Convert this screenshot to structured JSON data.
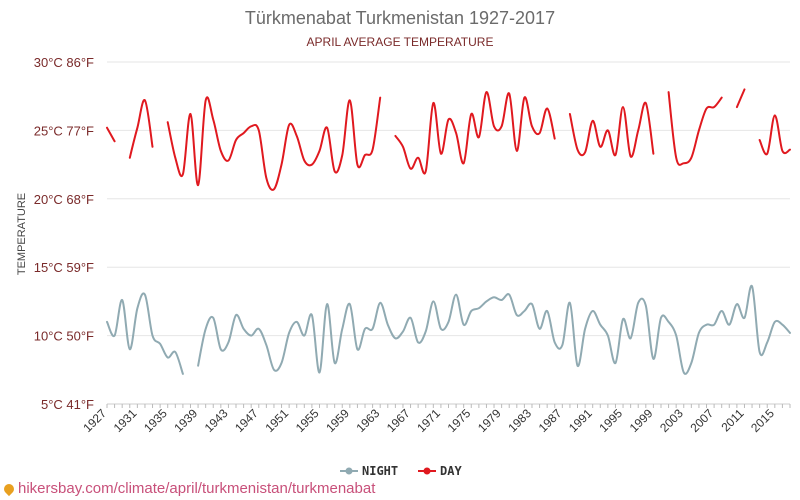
{
  "chart_data": {
    "type": "line",
    "title": "Türkmenabat Turkmenistan 1927-2017",
    "subtitle": "APRIL AVERAGE TEMPERATURE",
    "ylabel": "TEMPERATURE",
    "ylim": [
      5,
      30
    ],
    "xlim": [
      1927,
      2017
    ],
    "y_ticks": [
      {
        "value": 30,
        "label": "30°C 86°F"
      },
      {
        "value": 25,
        "label": "25°C 77°F"
      },
      {
        "value": 20,
        "label": "20°C 68°F"
      },
      {
        "value": 15,
        "label": "15°C 59°F"
      },
      {
        "value": 10,
        "label": "10°C 50°F"
      },
      {
        "value": 5,
        "label": "5°C 41°F"
      }
    ],
    "x_ticks": [
      1927,
      1931,
      1935,
      1939,
      1943,
      1947,
      1951,
      1955,
      1959,
      1963,
      1967,
      1971,
      1975,
      1979,
      1983,
      1987,
      1991,
      1995,
      1999,
      2003,
      2007,
      2011,
      2015
    ],
    "grid": true,
    "legend_position": "bottom-center",
    "series": [
      {
        "name": "NIGHT",
        "color": "#90aab2",
        "values": [
          [
            1927,
            11.0
          ],
          [
            1928,
            10.0
          ],
          [
            1929,
            12.6
          ],
          [
            1930,
            9.0
          ],
          [
            1931,
            12.0
          ],
          [
            1932,
            13.0
          ],
          [
            1933,
            10.0
          ],
          [
            1934,
            9.4
          ],
          [
            1935,
            8.4
          ],
          [
            1936,
            8.8
          ],
          [
            1937,
            7.2
          ],
          [
            1939,
            7.8
          ],
          [
            1940,
            10.5
          ],
          [
            1941,
            11.3
          ],
          [
            1942,
            9.0
          ],
          [
            1943,
            9.5
          ],
          [
            1944,
            11.5
          ],
          [
            1945,
            10.5
          ],
          [
            1946,
            10.0
          ],
          [
            1947,
            10.5
          ],
          [
            1948,
            9.3
          ],
          [
            1949,
            7.5
          ],
          [
            1950,
            8.0
          ],
          [
            1951,
            10.2
          ],
          [
            1952,
            11.0
          ],
          [
            1953,
            10.0
          ],
          [
            1954,
            11.5
          ],
          [
            1955,
            7.3
          ],
          [
            1956,
            12.3
          ],
          [
            1957,
            8.0
          ],
          [
            1958,
            10.5
          ],
          [
            1959,
            12.3
          ],
          [
            1960,
            9.0
          ],
          [
            1961,
            10.5
          ],
          [
            1962,
            10.5
          ],
          [
            1963,
            12.4
          ],
          [
            1964,
            10.8
          ],
          [
            1965,
            9.8
          ],
          [
            1966,
            10.3
          ],
          [
            1967,
            11.3
          ],
          [
            1968,
            9.5
          ],
          [
            1969,
            10.3
          ],
          [
            1970,
            12.5
          ],
          [
            1971,
            10.5
          ],
          [
            1972,
            11.0
          ],
          [
            1973,
            13.0
          ],
          [
            1974,
            10.8
          ],
          [
            1975,
            11.8
          ],
          [
            1976,
            12.0
          ],
          [
            1977,
            12.5
          ],
          [
            1978,
            12.8
          ],
          [
            1979,
            12.6
          ],
          [
            1980,
            13.0
          ],
          [
            1981,
            11.5
          ],
          [
            1982,
            11.8
          ],
          [
            1983,
            12.3
          ],
          [
            1984,
            10.5
          ],
          [
            1985,
            11.8
          ],
          [
            1986,
            9.5
          ],
          [
            1987,
            9.3
          ],
          [
            1988,
            12.4
          ],
          [
            1989,
            7.8
          ],
          [
            1990,
            10.5
          ],
          [
            1991,
            11.8
          ],
          [
            1992,
            10.8
          ],
          [
            1993,
            10.0
          ],
          [
            1994,
            8.0
          ],
          [
            1995,
            11.2
          ],
          [
            1996,
            9.8
          ],
          [
            1997,
            12.4
          ],
          [
            1998,
            12.2
          ],
          [
            1999,
            8.3
          ],
          [
            2000,
            11.3
          ],
          [
            2001,
            11.0
          ],
          [
            2002,
            10.0
          ],
          [
            2003,
            7.3
          ],
          [
            2004,
            8.0
          ],
          [
            2005,
            10.2
          ],
          [
            2006,
            10.8
          ],
          [
            2007,
            10.8
          ],
          [
            2008,
            11.8
          ],
          [
            2009,
            10.8
          ],
          [
            2010,
            12.3
          ],
          [
            2011,
            11.3
          ],
          [
            2012,
            13.6
          ],
          [
            2013,
            8.8
          ],
          [
            2014,
            9.5
          ],
          [
            2015,
            11.0
          ],
          [
            2016,
            10.8
          ],
          [
            2017,
            10.2
          ]
        ]
      },
      {
        "name": "DAY",
        "color": "#e0191f",
        "values": [
          [
            1927,
            25.2
          ],
          [
            1928,
            24.2
          ],
          [
            1930,
            23.0
          ],
          [
            1931,
            25.2
          ],
          [
            1932,
            27.2
          ],
          [
            1933,
            23.8
          ],
          [
            1935,
            25.6
          ],
          [
            1936,
            23.0
          ],
          [
            1937,
            21.8
          ],
          [
            1938,
            26.2
          ],
          [
            1939,
            21.0
          ],
          [
            1940,
            27.2
          ],
          [
            1941,
            25.8
          ],
          [
            1942,
            23.5
          ],
          [
            1943,
            22.8
          ],
          [
            1944,
            24.3
          ],
          [
            1945,
            24.8
          ],
          [
            1946,
            25.3
          ],
          [
            1947,
            25.0
          ],
          [
            1948,
            21.5
          ],
          [
            1949,
            20.7
          ],
          [
            1950,
            22.5
          ],
          [
            1951,
            25.4
          ],
          [
            1952,
            24.6
          ],
          [
            1953,
            22.8
          ],
          [
            1954,
            22.5
          ],
          [
            1955,
            23.5
          ],
          [
            1956,
            25.2
          ],
          [
            1957,
            22.0
          ],
          [
            1958,
            23.2
          ],
          [
            1959,
            27.2
          ],
          [
            1960,
            22.5
          ],
          [
            1961,
            23.2
          ],
          [
            1962,
            23.6
          ],
          [
            1963,
            27.4
          ],
          [
            1965,
            24.6
          ],
          [
            1966,
            23.8
          ],
          [
            1967,
            22.2
          ],
          [
            1968,
            23.0
          ],
          [
            1969,
            22.0
          ],
          [
            1970,
            27.0
          ],
          [
            1971,
            23.3
          ],
          [
            1972,
            25.8
          ],
          [
            1973,
            24.8
          ],
          [
            1974,
            22.6
          ],
          [
            1975,
            26.2
          ],
          [
            1976,
            24.5
          ],
          [
            1977,
            27.8
          ],
          [
            1978,
            25.3
          ],
          [
            1979,
            25.3
          ],
          [
            1980,
            27.7
          ],
          [
            1981,
            23.5
          ],
          [
            1982,
            27.4
          ],
          [
            1983,
            25.3
          ],
          [
            1984,
            24.8
          ],
          [
            1985,
            26.6
          ],
          [
            1986,
            24.4
          ],
          [
            1988,
            26.2
          ],
          [
            1989,
            23.6
          ],
          [
            1990,
            23.4
          ],
          [
            1991,
            25.7
          ],
          [
            1992,
            23.8
          ],
          [
            1993,
            25.0
          ],
          [
            1994,
            23.2
          ],
          [
            1995,
            26.7
          ],
          [
            1996,
            23.1
          ],
          [
            1997,
            25.0
          ],
          [
            1998,
            27.0
          ],
          [
            1999,
            23.3
          ],
          [
            2001,
            27.8
          ],
          [
            2002,
            23.0
          ],
          [
            2003,
            22.6
          ],
          [
            2004,
            23.0
          ],
          [
            2005,
            25.0
          ],
          [
            2006,
            26.6
          ],
          [
            2007,
            26.7
          ],
          [
            2008,
            27.4
          ],
          [
            2010,
            26.7
          ],
          [
            2011,
            28.0
          ],
          [
            2013,
            24.3
          ],
          [
            2014,
            23.3
          ],
          [
            2015,
            26.1
          ],
          [
            2016,
            23.5
          ],
          [
            2017,
            23.6
          ]
        ]
      }
    ]
  },
  "footer": {
    "text": "hikersbay.com/climate/april/turkmenistan/turkmenabat"
  }
}
